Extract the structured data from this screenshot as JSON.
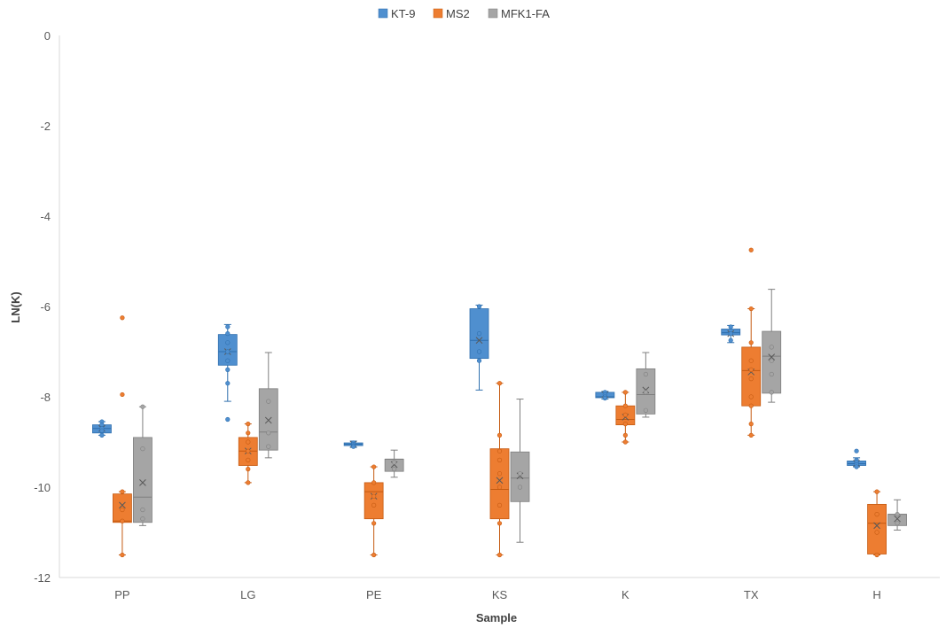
{
  "chart_data": {
    "type": "box",
    "xlabel": "Sample",
    "ylabel": "LN(K)",
    "ylim": [
      -12,
      0
    ],
    "yticks": [
      0,
      -2,
      -4,
      -6,
      -8,
      -10,
      -12
    ],
    "grid": false,
    "legend_position": "top-center",
    "categories": [
      "PP",
      "LG",
      "PE",
      "KS",
      "K",
      "TX",
      "H"
    ],
    "series": [
      {
        "name": "KT-9",
        "color": "#4f8fcf",
        "stroke": "#2e6fae",
        "boxes": [
          {
            "min": -8.85,
            "q1": -8.8,
            "median": -8.7,
            "q3": -8.62,
            "max": -8.55,
            "mean": -8.7,
            "points": [
              -8.55,
              -8.62,
              -8.7,
              -8.75,
              -8.85
            ]
          },
          {
            "min": -8.1,
            "q1": -7.3,
            "median": -7.0,
            "q3": -6.62,
            "max": -6.4,
            "mean": -7.0,
            "points": [
              -6.45,
              -6.6,
              -6.8,
              -7.0,
              -7.2,
              -7.4,
              -7.7,
              -8.5
            ]
          },
          {
            "min": -9.12,
            "q1": -9.08,
            "median": -9.05,
            "q3": -9.02,
            "max": -8.98,
            "mean": -9.05,
            "points": [
              -9.02,
              -9.05,
              -9.08,
              -9.1
            ]
          },
          {
            "min": -7.85,
            "q1": -7.15,
            "median": -6.75,
            "q3": -6.05,
            "max": -5.97,
            "mean": -6.75,
            "points": [
              -6.0,
              -6.6,
              -7.0,
              -7.2
            ]
          },
          {
            "min": -8.05,
            "q1": -8.02,
            "median": -8.0,
            "q3": -7.9,
            "max": -7.88,
            "mean": -7.95,
            "points": [
              -7.9,
              -7.95,
              -8.0,
              -8.03
            ]
          },
          {
            "min": -6.8,
            "q1": -6.63,
            "median": -6.58,
            "q3": -6.5,
            "max": -6.42,
            "mean": -6.6,
            "points": [
              -6.45,
              -6.6,
              -6.75
            ]
          },
          {
            "min": -9.55,
            "q1": -9.52,
            "median": -9.48,
            "q3": -9.42,
            "max": -9.35,
            "mean": -9.47,
            "points": [
              -9.2,
              -9.4,
              -9.45,
              -9.5,
              -9.55
            ]
          }
        ]
      },
      {
        "name": "MS2",
        "color": "#ed7d31",
        "stroke": "#c55a11",
        "boxes": [
          {
            "min": -11.5,
            "q1": -10.78,
            "median": -10.75,
            "q3": -10.15,
            "max": -10.1,
            "mean": -10.4,
            "points": [
              -6.25,
              -7.95,
              -10.1,
              -10.5,
              -10.75,
              -11.5
            ]
          },
          {
            "min": -9.9,
            "q1": -9.52,
            "median": -9.2,
            "q3": -8.9,
            "max": -8.6,
            "mean": -9.2,
            "points": [
              -8.6,
              -8.8,
              -9.0,
              -9.2,
              -9.4,
              -9.6,
              -9.9
            ]
          },
          {
            "min": -11.5,
            "q1": -10.7,
            "median": -10.1,
            "q3": -9.9,
            "max": -9.55,
            "mean": -10.2,
            "points": [
              -9.55,
              -9.9,
              -10.2,
              -10.4,
              -10.8,
              -11.5
            ]
          },
          {
            "min": -11.5,
            "q1": -10.7,
            "median": -10.05,
            "q3": -9.15,
            "max": -7.7,
            "mean": -9.85,
            "points": [
              -7.7,
              -8.85,
              -9.2,
              -9.4,
              -9.7,
              -10.0,
              -10.4,
              -10.8,
              -11.5
            ]
          },
          {
            "min": -9.0,
            "q1": -8.62,
            "median": -8.5,
            "q3": -8.2,
            "max": -7.9,
            "mean": -8.45,
            "points": [
              -7.9,
              -8.2,
              -8.4,
              -8.6,
              -8.85,
              -9.0
            ]
          },
          {
            "min": -8.85,
            "q1": -8.2,
            "median": -7.42,
            "q3": -6.9,
            "max": -6.05,
            "mean": -7.45,
            "points": [
              -4.75,
              -6.05,
              -6.8,
              -7.2,
              -7.4,
              -7.6,
              -8.0,
              -8.2,
              -8.6,
              -8.85
            ]
          },
          {
            "min": -11.5,
            "q1": -11.48,
            "median": -10.8,
            "q3": -10.38,
            "max": -10.1,
            "mean": -10.85,
            "points": [
              -10.1,
              -10.6,
              -11.0,
              -11.5
            ]
          }
        ]
      },
      {
        "name": "MFK1-FA",
        "color": "#a5a5a5",
        "stroke": "#7f7f7f",
        "boxes": [
          {
            "min": -10.85,
            "q1": -10.78,
            "median": -10.22,
            "q3": -8.9,
            "max": -8.22,
            "mean": -9.9,
            "points": [
              -8.22,
              -9.15,
              -10.5,
              -10.7
            ]
          },
          {
            "min": -9.35,
            "q1": -9.18,
            "median": -8.78,
            "q3": -7.82,
            "max": -7.02,
            "mean": -8.52,
            "points": [
              -8.1,
              -8.8,
              -9.1
            ]
          },
          {
            "min": -9.78,
            "q1": -9.65,
            "median": -9.38,
            "q3": -9.38,
            "max": -9.18,
            "mean": -9.5,
            "points": [
              -9.45,
              -9.6
            ]
          },
          {
            "min": -11.22,
            "q1": -10.32,
            "median": -9.8,
            "q3": -9.22,
            "max": -8.05,
            "mean": -9.75,
            "points": [
              -9.7,
              -10.0
            ]
          },
          {
            "min": -8.45,
            "q1": -8.38,
            "median": -7.95,
            "q3": -7.38,
            "max": -7.02,
            "mean": -7.85,
            "points": [
              -7.5,
              -7.9,
              -8.3
            ]
          },
          {
            "min": -8.12,
            "q1": -7.92,
            "median": -7.1,
            "q3": -6.55,
            "max": -5.62,
            "mean": -7.12,
            "points": [
              -6.9,
              -7.2,
              -7.5,
              -7.9
            ]
          },
          {
            "min": -10.95,
            "q1": -10.85,
            "median": -10.6,
            "q3": -10.6,
            "max": -10.28,
            "mean": -10.7,
            "points": [
              -10.6,
              -10.8
            ]
          }
        ]
      }
    ]
  }
}
